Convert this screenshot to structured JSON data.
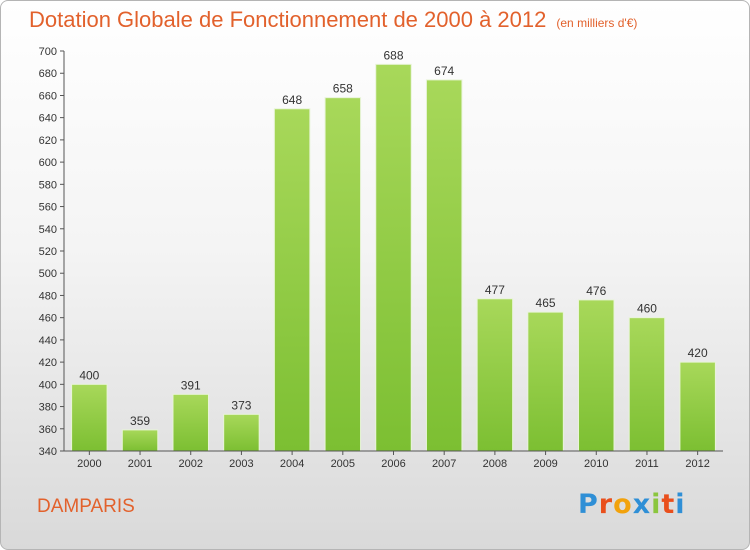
{
  "chart_data": {
    "type": "bar",
    "title": "Dotation Globale de Fonctionnement de 2000 à 2012",
    "subtitle": "(en milliers d'€)",
    "categories": [
      "2000",
      "2001",
      "2002",
      "2003",
      "2004",
      "2005",
      "2006",
      "2007",
      "2008",
      "2009",
      "2010",
      "2011",
      "2012"
    ],
    "values": [
      400,
      359,
      391,
      373,
      648,
      658,
      688,
      674,
      477,
      465,
      476,
      460,
      420
    ],
    "ylim": [
      340,
      700
    ],
    "ytick_step": 20,
    "grid": false,
    "bar_color": "#7cbf32",
    "bar_color_light": "#a8d85a"
  },
  "footer": {
    "commune": "DAMPARIS",
    "logo": {
      "letters": [
        "P",
        "r",
        "o",
        "x",
        "i",
        "t",
        "i"
      ],
      "colors": [
        "#2f8fd6",
        "#e94f1c",
        "#f2a20c",
        "#2f8fd6",
        "#8bc63e",
        "#e94f1c",
        "#2f8fd6"
      ]
    }
  },
  "colors": {
    "accent": "#e2612c"
  }
}
